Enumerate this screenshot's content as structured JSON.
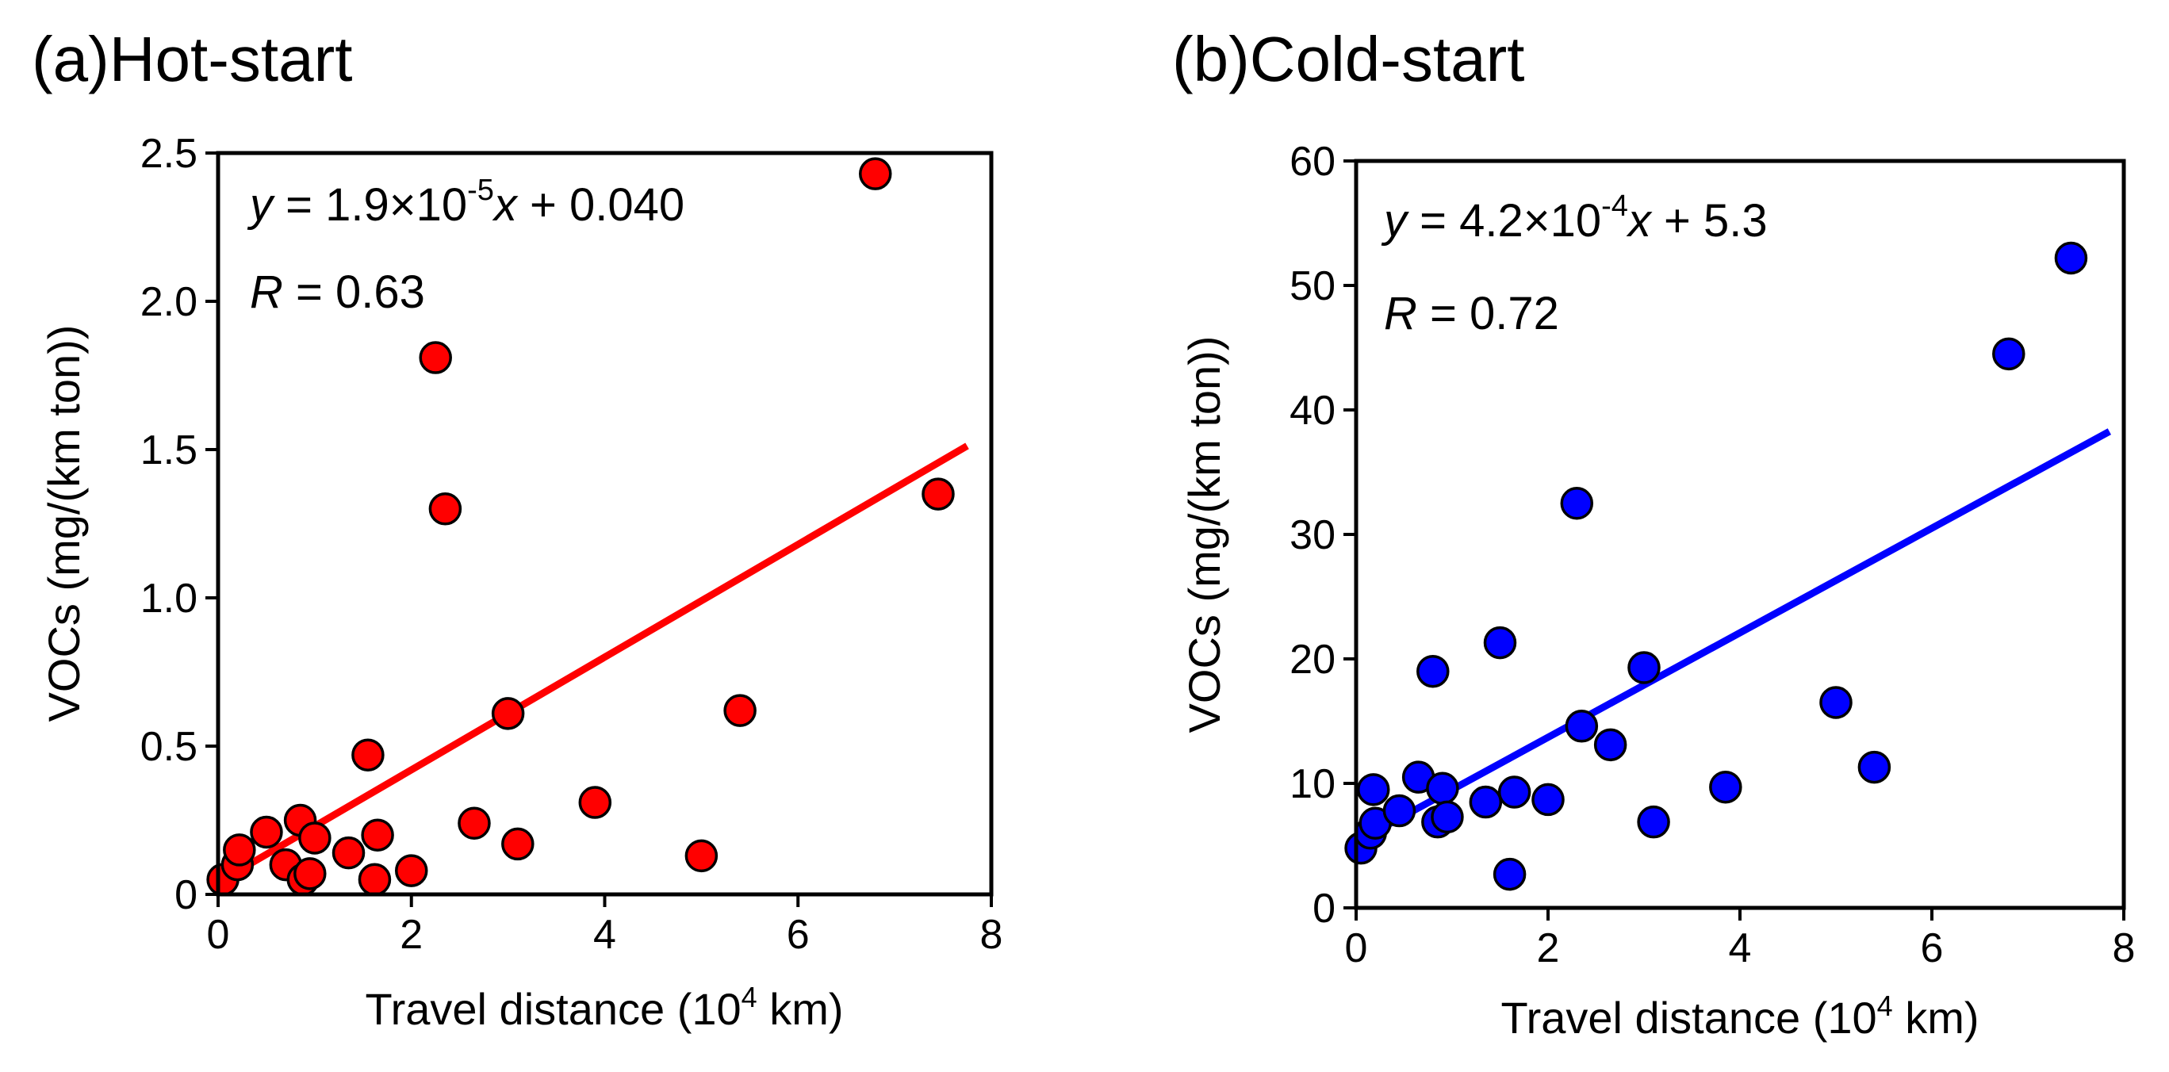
{
  "chart_data": [
    {
      "type": "scatter",
      "title": "(a)Hot-start",
      "xlabel_pre": "Travel distance (10",
      "xlabel_sup": "4",
      "xlabel_post": " km)",
      "ylabel": "VOCs (mg/(km ton))",
      "xlim": [
        0,
        8
      ],
      "ylim": [
        0,
        2.5
      ],
      "xticks": [
        0,
        2,
        4,
        6,
        8
      ],
      "xtick_labels": [
        "0",
        "2",
        "4",
        "6",
        "8"
      ],
      "yticks": [
        0,
        0.5,
        1.0,
        1.5,
        2.0,
        2.5
      ],
      "ytick_labels": [
        "0",
        "0.5",
        "1.0",
        "1.5",
        "2.0",
        "2.5"
      ],
      "point_color": "#ff0000",
      "line_color": "#ff0000",
      "fit": {
        "slope": 0.19,
        "intercept": 0.04,
        "x_range": [
          0,
          7.75
        ]
      },
      "equation": {
        "y": "y",
        "eq_pre": " = 1.9×10",
        "exp": "-5",
        "x": "x",
        "eq_post": " + 0.040"
      },
      "r_label": {
        "r": "R",
        "value": " = 0.63"
      },
      "points": [
        {
          "x": 0.05,
          "y": 0.05
        },
        {
          "x": 0.2,
          "y": 0.1
        },
        {
          "x": 0.22,
          "y": 0.15
        },
        {
          "x": 0.5,
          "y": 0.21
        },
        {
          "x": 0.7,
          "y": 0.1
        },
        {
          "x": 0.85,
          "y": 0.25
        },
        {
          "x": 0.88,
          "y": 0.05
        },
        {
          "x": 0.95,
          "y": 0.07
        },
        {
          "x": 1.0,
          "y": 0.19
        },
        {
          "x": 1.35,
          "y": 0.14
        },
        {
          "x": 1.55,
          "y": 0.47
        },
        {
          "x": 1.62,
          "y": 0.05
        },
        {
          "x": 1.65,
          "y": 0.2
        },
        {
          "x": 2.0,
          "y": 0.08
        },
        {
          "x": 2.25,
          "y": 1.81
        },
        {
          "x": 2.35,
          "y": 1.3
        },
        {
          "x": 2.65,
          "y": 0.24
        },
        {
          "x": 3.0,
          "y": 0.61
        },
        {
          "x": 3.1,
          "y": 0.17
        },
        {
          "x": 3.9,
          "y": 0.31
        },
        {
          "x": 5.0,
          "y": 0.13
        },
        {
          "x": 5.4,
          "y": 0.62
        },
        {
          "x": 6.8,
          "y": 2.43
        },
        {
          "x": 7.45,
          "y": 1.35
        }
      ]
    },
    {
      "type": "scatter",
      "title": "(b)Cold-start",
      "xlabel_pre": "Travel distance (10",
      "xlabel_sup": "4",
      "xlabel_post": " km)",
      "ylabel": "VOCs (mg/(km ton))",
      "xlim": [
        0,
        8
      ],
      "ylim": [
        0,
        60
      ],
      "xticks": [
        0,
        2,
        4,
        6,
        8
      ],
      "xtick_labels": [
        "0",
        "2",
        "4",
        "6",
        "8"
      ],
      "yticks": [
        0,
        10,
        20,
        30,
        40,
        50,
        60
      ],
      "ytick_labels": [
        "0",
        "10",
        "20",
        "30",
        "40",
        "50",
        "60"
      ],
      "point_color": "#0000ff",
      "line_color": "#0000ff",
      "fit": {
        "slope": 4.2,
        "intercept": 5.3,
        "x_range": [
          0,
          7.85
        ]
      },
      "equation": {
        "y": "y",
        "eq_pre": " = 4.2×10",
        "exp": "-4",
        "x": "x",
        "eq_post": " + 5.3"
      },
      "r_label": {
        "r": "R",
        "value": " = 0.72"
      },
      "points": [
        {
          "x": 0.05,
          "y": 4.8
        },
        {
          "x": 0.15,
          "y": 6.0
        },
        {
          "x": 0.18,
          "y": 9.5
        },
        {
          "x": 0.2,
          "y": 6.8
        },
        {
          "x": 0.45,
          "y": 7.8
        },
        {
          "x": 0.65,
          "y": 10.5
        },
        {
          "x": 0.8,
          "y": 19.0
        },
        {
          "x": 0.85,
          "y": 6.9
        },
        {
          "x": 0.9,
          "y": 9.6
        },
        {
          "x": 0.95,
          "y": 7.3
        },
        {
          "x": 1.35,
          "y": 8.5
        },
        {
          "x": 1.5,
          "y": 21.3
        },
        {
          "x": 1.6,
          "y": 2.7
        },
        {
          "x": 1.65,
          "y": 9.3
        },
        {
          "x": 2.0,
          "y": 8.7
        },
        {
          "x": 2.3,
          "y": 32.5
        },
        {
          "x": 2.35,
          "y": 14.6
        },
        {
          "x": 2.65,
          "y": 13.1
        },
        {
          "x": 3.0,
          "y": 19.3
        },
        {
          "x": 3.1,
          "y": 6.9
        },
        {
          "x": 3.85,
          "y": 9.7
        },
        {
          "x": 5.0,
          "y": 16.5
        },
        {
          "x": 5.4,
          "y": 11.3
        },
        {
          "x": 6.8,
          "y": 44.5
        },
        {
          "x": 7.45,
          "y": 52.2
        }
      ]
    }
  ]
}
